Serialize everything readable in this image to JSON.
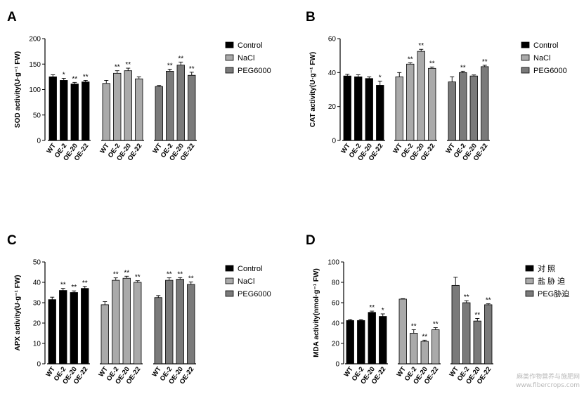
{
  "watermark": {
    "line1": "麻类作物营养与施肥网",
    "line2": "www.fibercrops.com"
  },
  "chart_data": [
    {
      "panel": "A",
      "type": "bar",
      "ylabel": "SOD activity(U·g⁻¹ FW)",
      "ylim": [
        0,
        200
      ],
      "yticks": [
        0,
        50,
        100,
        150,
        200
      ],
      "categories": [
        "WT",
        "OE-2",
        "OE-20",
        "OE-22"
      ],
      "legend": {
        "position": "right",
        "entries": [
          "Control",
          "NaCl",
          "PEG6000"
        ]
      },
      "series": [
        {
          "name": "Control",
          "color": "#000000",
          "values": [
            125,
            118,
            111,
            115
          ],
          "errors": [
            4,
            4,
            3,
            3
          ],
          "significance": [
            "",
            "*",
            "**",
            "**"
          ]
        },
        {
          "name": "NaCl",
          "color": "#aaaaaa",
          "values": [
            112,
            132,
            137,
            121
          ],
          "errors": [
            6,
            5,
            5,
            4
          ],
          "significance": [
            "",
            "**",
            "**",
            ""
          ]
        },
        {
          "name": "PEG6000",
          "color": "#7a7a7a",
          "values": [
            106,
            136,
            148,
            128
          ],
          "errors": [
            2,
            4,
            6,
            6
          ],
          "significance": [
            "",
            "**",
            "**",
            "**"
          ]
        }
      ]
    },
    {
      "panel": "B",
      "type": "bar",
      "ylabel": "CAT activity(U·g⁻¹ FW)",
      "ylim": [
        0,
        60
      ],
      "yticks": [
        0,
        20,
        40,
        60
      ],
      "categories": [
        "WT",
        "OE-2",
        "OE-20",
        "OE-22"
      ],
      "legend": {
        "position": "right",
        "entries": [
          "Control",
          "NaCl",
          "PEG6000"
        ]
      },
      "series": [
        {
          "name": "Control",
          "color": "#000000",
          "values": [
            38,
            37.5,
            36.5,
            32.5
          ],
          "errors": [
            1,
            1.2,
            1,
            2.5
          ],
          "significance": [
            "",
            "",
            "",
            "*"
          ]
        },
        {
          "name": "NaCl",
          "color": "#aaaaaa",
          "values": [
            37.5,
            45,
            52.5,
            42.5
          ],
          "errors": [
            2.5,
            0.8,
            1.2,
            0.8
          ],
          "significance": [
            "",
            "**",
            "**",
            "**"
          ]
        },
        {
          "name": "PEG6000",
          "color": "#7a7a7a",
          "values": [
            34.5,
            40,
            38,
            43.5
          ],
          "errors": [
            3,
            0.8,
            0.6,
            0.8
          ],
          "significance": [
            "",
            "**",
            "",
            "**"
          ]
        }
      ]
    },
    {
      "panel": "C",
      "type": "bar",
      "ylabel": "APX activity(U·g⁻¹ FW)",
      "ylim": [
        0,
        50
      ],
      "yticks": [
        0,
        10,
        20,
        30,
        40,
        50
      ],
      "categories": [
        "WT",
        "OE-2",
        "OE-20",
        "OE-22"
      ],
      "legend": {
        "position": "right",
        "entries": [
          "Control",
          "NaCl",
          "PEG6000"
        ]
      },
      "series": [
        {
          "name": "Control",
          "color": "#000000",
          "values": [
            31.5,
            36,
            35,
            37
          ],
          "errors": [
            1.2,
            1,
            0.8,
            1
          ],
          "significance": [
            "",
            "**",
            "**",
            "**"
          ]
        },
        {
          "name": "NaCl",
          "color": "#aaaaaa",
          "values": [
            29,
            41,
            42,
            40
          ],
          "errors": [
            1.5,
            1.2,
            1,
            0.8
          ],
          "significance": [
            "",
            "**",
            "**",
            "**"
          ]
        },
        {
          "name": "PEG6000",
          "color": "#7a7a7a",
          "values": [
            32.5,
            41,
            41.5,
            39
          ],
          "errors": [
            1,
            1.2,
            0.8,
            1.2
          ],
          "significance": [
            "",
            "**",
            "**",
            "**"
          ]
        }
      ]
    },
    {
      "panel": "D",
      "type": "bar",
      "ylabel": "MDA activity(nmol·g⁻¹ FW)",
      "ylim": [
        0,
        100
      ],
      "yticks": [
        0,
        20,
        40,
        60,
        80,
        100
      ],
      "categories": [
        "WT",
        "OE-2",
        "OE-20",
        "OE-22"
      ],
      "legend": {
        "position": "right",
        "entries": [
          "对 照",
          "盐 胁 迫",
          "PEG胁迫"
        ]
      },
      "series": [
        {
          "name": "对 照",
          "color": "#000000",
          "values": [
            42.5,
            42.5,
            50.5,
            46.5
          ],
          "errors": [
            1,
            1,
            1.2,
            2.5
          ],
          "significance": [
            "",
            "",
            "**",
            "*"
          ]
        },
        {
          "name": "盐 胁 迫",
          "color": "#aaaaaa",
          "values": [
            63.5,
            30,
            22,
            33.5
          ],
          "errors": [
            0.5,
            3.5,
            1.2,
            2
          ],
          "significance": [
            "",
            "**",
            "**",
            "**"
          ]
        },
        {
          "name": "PEG胁迫",
          "color": "#7a7a7a",
          "values": [
            77,
            60,
            42,
            58
          ],
          "errors": [
            8,
            2,
            2.5,
            1
          ],
          "significance": [
            "",
            "**",
            "**",
            "**"
          ]
        }
      ]
    }
  ]
}
